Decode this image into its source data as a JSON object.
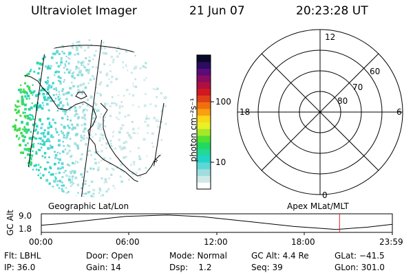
{
  "header": {
    "instrument": "Ultraviolet Imager",
    "date": "21 Jun 07",
    "time": "20:23:28 UT"
  },
  "left_panel_label": "Geographic Lat/Lon",
  "right_panel_label": "Apex MLat/MLT",
  "colorbar": {
    "unit_label": "photon cm⁻²s⁻¹",
    "tick_100": "100",
    "tick_10": "10",
    "colors": [
      "#ffffff",
      "#cfe9e9",
      "#9fdede",
      "#5fd7d7",
      "#22d4c8",
      "#22d89a",
      "#22d860",
      "#52e030",
      "#a6e828",
      "#e8f028",
      "#f8d818",
      "#f8a010",
      "#f07010",
      "#e04018",
      "#d01820",
      "#b01040",
      "#8a0c60",
      "#5a0c78",
      "#2c0c60",
      "#0a0a28"
    ],
    "scale": "log"
  },
  "polar": {
    "mlt_labels": {
      "top": "12",
      "left": "18",
      "right": "6",
      "bottom": "0"
    },
    "lat_labels": [
      "60",
      "70",
      "80"
    ]
  },
  "altitude_plot": {
    "axis_label": "GC Alt",
    "ticks": [
      "9.0",
      "1.8"
    ],
    "time_ticks": [
      "00:00",
      "06:00",
      "12:00",
      "18:00",
      "23:59"
    ],
    "current_time_marker": "20:23:28"
  },
  "footer": {
    "flt": "Flt: LBHL",
    "ip": "IP: 36.0",
    "door": "Door: Open",
    "gain": "Gain: 14",
    "mode": "Mode: Normal",
    "dsp": "Dsp:    1.2",
    "gc_alt": "GC Alt: 4.4 Re",
    "seq": "Seq: 39",
    "glat": "GLat: −41.5",
    "glon": "GLon: 301.0"
  }
}
